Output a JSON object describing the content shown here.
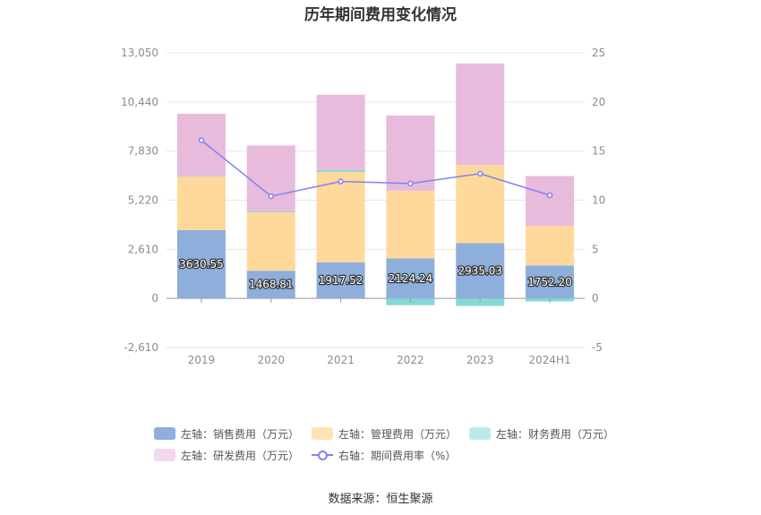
{
  "chart_data": {
    "type": "bar",
    "title": "历年期间费用变化情况",
    "categories": [
      "2019",
      "2020",
      "2021",
      "2022",
      "2023",
      "2024H1"
    ],
    "series": [
      {
        "name": "左轴：销售费用（万元）",
        "color": "#8eaedb",
        "values": [
          3630.55,
          1468.81,
          1917.52,
          2124.24,
          2935.03,
          1752.2
        ]
      },
      {
        "name": "左轴：管理费用（万元）",
        "color": "#ffd99b",
        "values": [
          2850,
          3100,
          4800,
          3600,
          4150,
          2100
        ]
      },
      {
        "name": "左轴：财务费用（万元）",
        "color": "#86d8d6",
        "values": [
          30,
          60,
          110,
          -360,
          -400,
          -160
        ]
      },
      {
        "name": "左轴：研发费用（万元）",
        "color": "#e8badb",
        "values": [
          3300,
          3500,
          4000,
          4000,
          5400,
          2650
        ]
      }
    ],
    "line_series": {
      "name": "右轴：期间费用率（%）",
      "color": "#7f83f0",
      "values": [
        16.1,
        10.4,
        11.9,
        11.7,
        12.7,
        10.5
      ]
    },
    "data_labels": [
      "3630.55",
      "1468.81",
      "1917.52",
      "2124.24",
      "2935.03",
      "1752.20"
    ],
    "left_axis": {
      "ticks": [
        "13,050",
        "10,440",
        "7,830",
        "5,220",
        "2,610",
        "0",
        "-2,610"
      ],
      "ylim": [
        -2610,
        13050
      ]
    },
    "right_axis": {
      "ticks": [
        "25",
        "20",
        "15",
        "10",
        "5",
        "0",
        "-5"
      ],
      "ylim": [
        -5,
        25
      ]
    },
    "grid": true,
    "legend_position": "bottom"
  },
  "source": "数据来源：恒生聚源"
}
